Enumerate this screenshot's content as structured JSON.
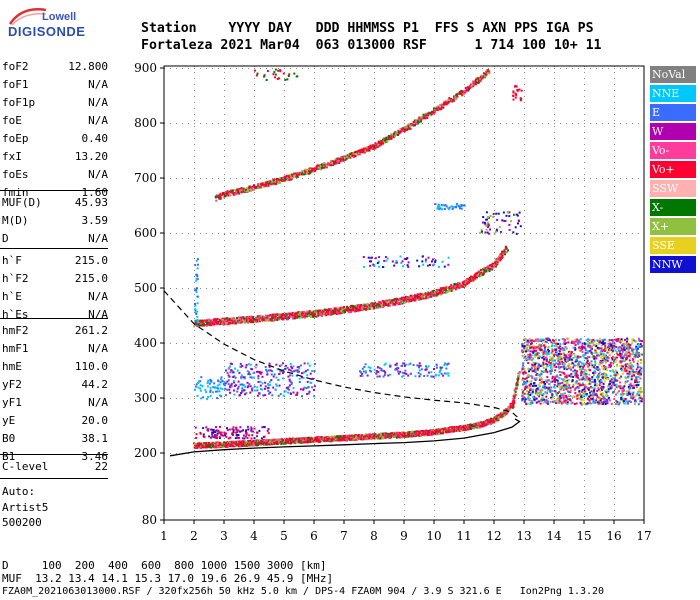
{
  "logo": {
    "line1": "Lowell",
    "line2": "DIGISONDE"
  },
  "header": {
    "row1": "Station    YYYY DAY   DDD HHMMSS P1  FFS S AXN PPS IGA PS",
    "row2": "Fortaleza 2021 Mar04  063 013000 RSF      1 714 100 10+ 11"
  },
  "params": [
    {
      "label": "foF2",
      "value": "12.800"
    },
    {
      "label": "foF1",
      "value": "N/A"
    },
    {
      "label": "foF1p",
      "value": "N/A"
    },
    {
      "label": "foE",
      "value": "N/A"
    },
    {
      "label": "foEp",
      "value": "0.40"
    },
    {
      "label": "fxI",
      "value": "13.20"
    },
    {
      "label": "foEs",
      "value": "N/A"
    },
    {
      "label": "fmin",
      "value": "1.60"
    },
    {
      "label": "MUF(D)",
      "value": "45.93"
    },
    {
      "label": "M(D)",
      "value": "3.59"
    },
    {
      "label": "D",
      "value": "N/A"
    },
    {
      "label": "h`F",
      "value": "215.0"
    },
    {
      "label": "h`F2",
      "value": "215.0"
    },
    {
      "label": "h`E",
      "value": "N/A"
    },
    {
      "label": "h`Es",
      "value": "N/A"
    },
    {
      "label": "hmF2",
      "value": "261.2"
    },
    {
      "label": "hmF1",
      "value": "N/A"
    },
    {
      "label": "hmE",
      "value": "110.0"
    },
    {
      "label": "yF2",
      "value": "44.2"
    },
    {
      "label": "yF1",
      "value": "N/A"
    },
    {
      "label": "yE",
      "value": "20.0"
    },
    {
      "label": "B0",
      "value": "38.1"
    },
    {
      "label": "B1",
      "value": "3.46"
    },
    {
      "label": "C-level",
      "value": "22"
    }
  ],
  "auto": {
    "line1": "Auto:",
    "line2": "Artist5",
    "line3": "500200"
  },
  "legend": [
    {
      "label": "NoVal",
      "color": "#808080"
    },
    {
      "label": "NNE",
      "color": "#00c8ff"
    },
    {
      "label": "E",
      "color": "#3a6cff"
    },
    {
      "label": "W",
      "color": "#b000b0"
    },
    {
      "label": "Vo-",
      "color": "#ff3c9c"
    },
    {
      "label": "Vo+",
      "color": "#ff0030"
    },
    {
      "label": "SSW",
      "color": "#ffb0b0"
    },
    {
      "label": "X-",
      "color": "#007800"
    },
    {
      "label": "X+",
      "color": "#90c040"
    },
    {
      "label": "SSE",
      "color": "#e8d020"
    },
    {
      "label": "NNW",
      "color": "#1010d0"
    }
  ],
  "footer": {
    "line1": "D     100  200  400  600  800 1000 1500 3000 [km]",
    "line2": "MUF  13.2 13.4 14.1 15.3 17.0 19.6 26.9 45.9 [MHz]",
    "line3": "FZA0M_2021063013000.RSF / 320fx256h 50 kHz 5.0 km / DPS-4 FZA0M 904 / 3.9 S 321.6 E   Ion2Png 1.3.20"
  },
  "chart_data": {
    "type": "scatter",
    "xlabel": "",
    "ylabel": "",
    "x_ticks": [
      1,
      2,
      3,
      4,
      5,
      6,
      7,
      8,
      9,
      10,
      11,
      12,
      13,
      14,
      15,
      16,
      17
    ],
    "y_ticks": [
      80,
      200,
      300,
      400,
      500,
      600,
      700,
      800,
      900
    ],
    "xlim": [
      1,
      17
    ],
    "ylim_note": "non-linear height axis, labelled 80-900 km",
    "ordinary_trace_F1": {
      "x": [
        2.0,
        3,
        4,
        5,
        6,
        7,
        8,
        9,
        10,
        11,
        11.5,
        12,
        12.3,
        12.6,
        12.8
      ],
      "y": [
        215,
        217,
        220,
        223,
        226,
        229,
        232,
        235,
        240,
        248,
        253,
        262,
        273,
        290,
        345
      ]
    },
    "ordinary_trace_F2_echo": {
      "x": [
        2.0,
        3,
        4,
        5,
        6,
        7,
        8,
        9,
        10,
        11,
        12,
        12.5
      ],
      "y": [
        437,
        441,
        445,
        450,
        455,
        462,
        470,
        480,
        492,
        510,
        545,
        580
      ]
    },
    "ordinary_trace_F3_echo": {
      "x": [
        2.7,
        3,
        4,
        5,
        6,
        7,
        8,
        9,
        10,
        11,
        12,
        12.5
      ],
      "y": [
        665,
        672,
        685,
        700,
        718,
        738,
        760,
        790,
        825,
        860,
        905,
        940
      ]
    },
    "profile_solid": {
      "x": [
        1.2,
        2,
        3,
        4,
        5,
        6,
        7,
        8,
        9,
        10,
        11,
        12,
        12.6,
        12.85,
        12.7
      ],
      "y": [
        195,
        202,
        206,
        209,
        211,
        213,
        215,
        217,
        219,
        222,
        227,
        237,
        247,
        257,
        262
      ]
    },
    "profile_dashed": {
      "x": [
        1,
        1.5,
        2,
        3,
        4,
        5,
        6,
        7,
        8,
        9,
        10,
        11,
        12,
        12.6,
        12.85
      ],
      "y": [
        495,
        465,
        435,
        398,
        370,
        349,
        333,
        320,
        310,
        302,
        296,
        291,
        283,
        274,
        262
      ]
    }
  }
}
